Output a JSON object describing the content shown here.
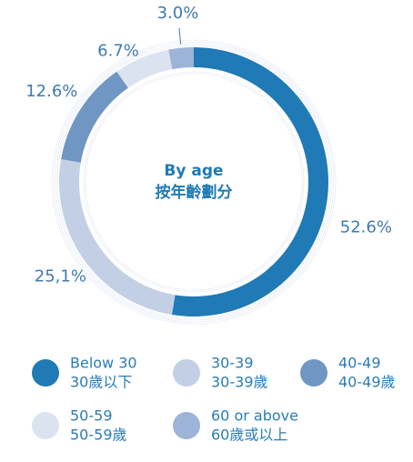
{
  "chart_data": {
    "type": "pie",
    "title": "By age",
    "subtitle": "按年齡劃分",
    "categories": [
      "Below 30",
      "30-39",
      "40-49",
      "50-59",
      "60 or above"
    ],
    "categories_zh": [
      "30歲以下",
      "30-39歲",
      "40-49歲",
      "50-59歲",
      "60歲或以上"
    ],
    "values": [
      52.6,
      25.1,
      12.6,
      6.7,
      3.0
    ],
    "value_labels": [
      "52.6%",
      "25,1%",
      "12.6%",
      "6.7%",
      "3.0%"
    ],
    "colors": [
      "#1f7ab5",
      "#c3cfe4",
      "#7096c3",
      "#dce3f0",
      "#9db3d7"
    ]
  }
}
